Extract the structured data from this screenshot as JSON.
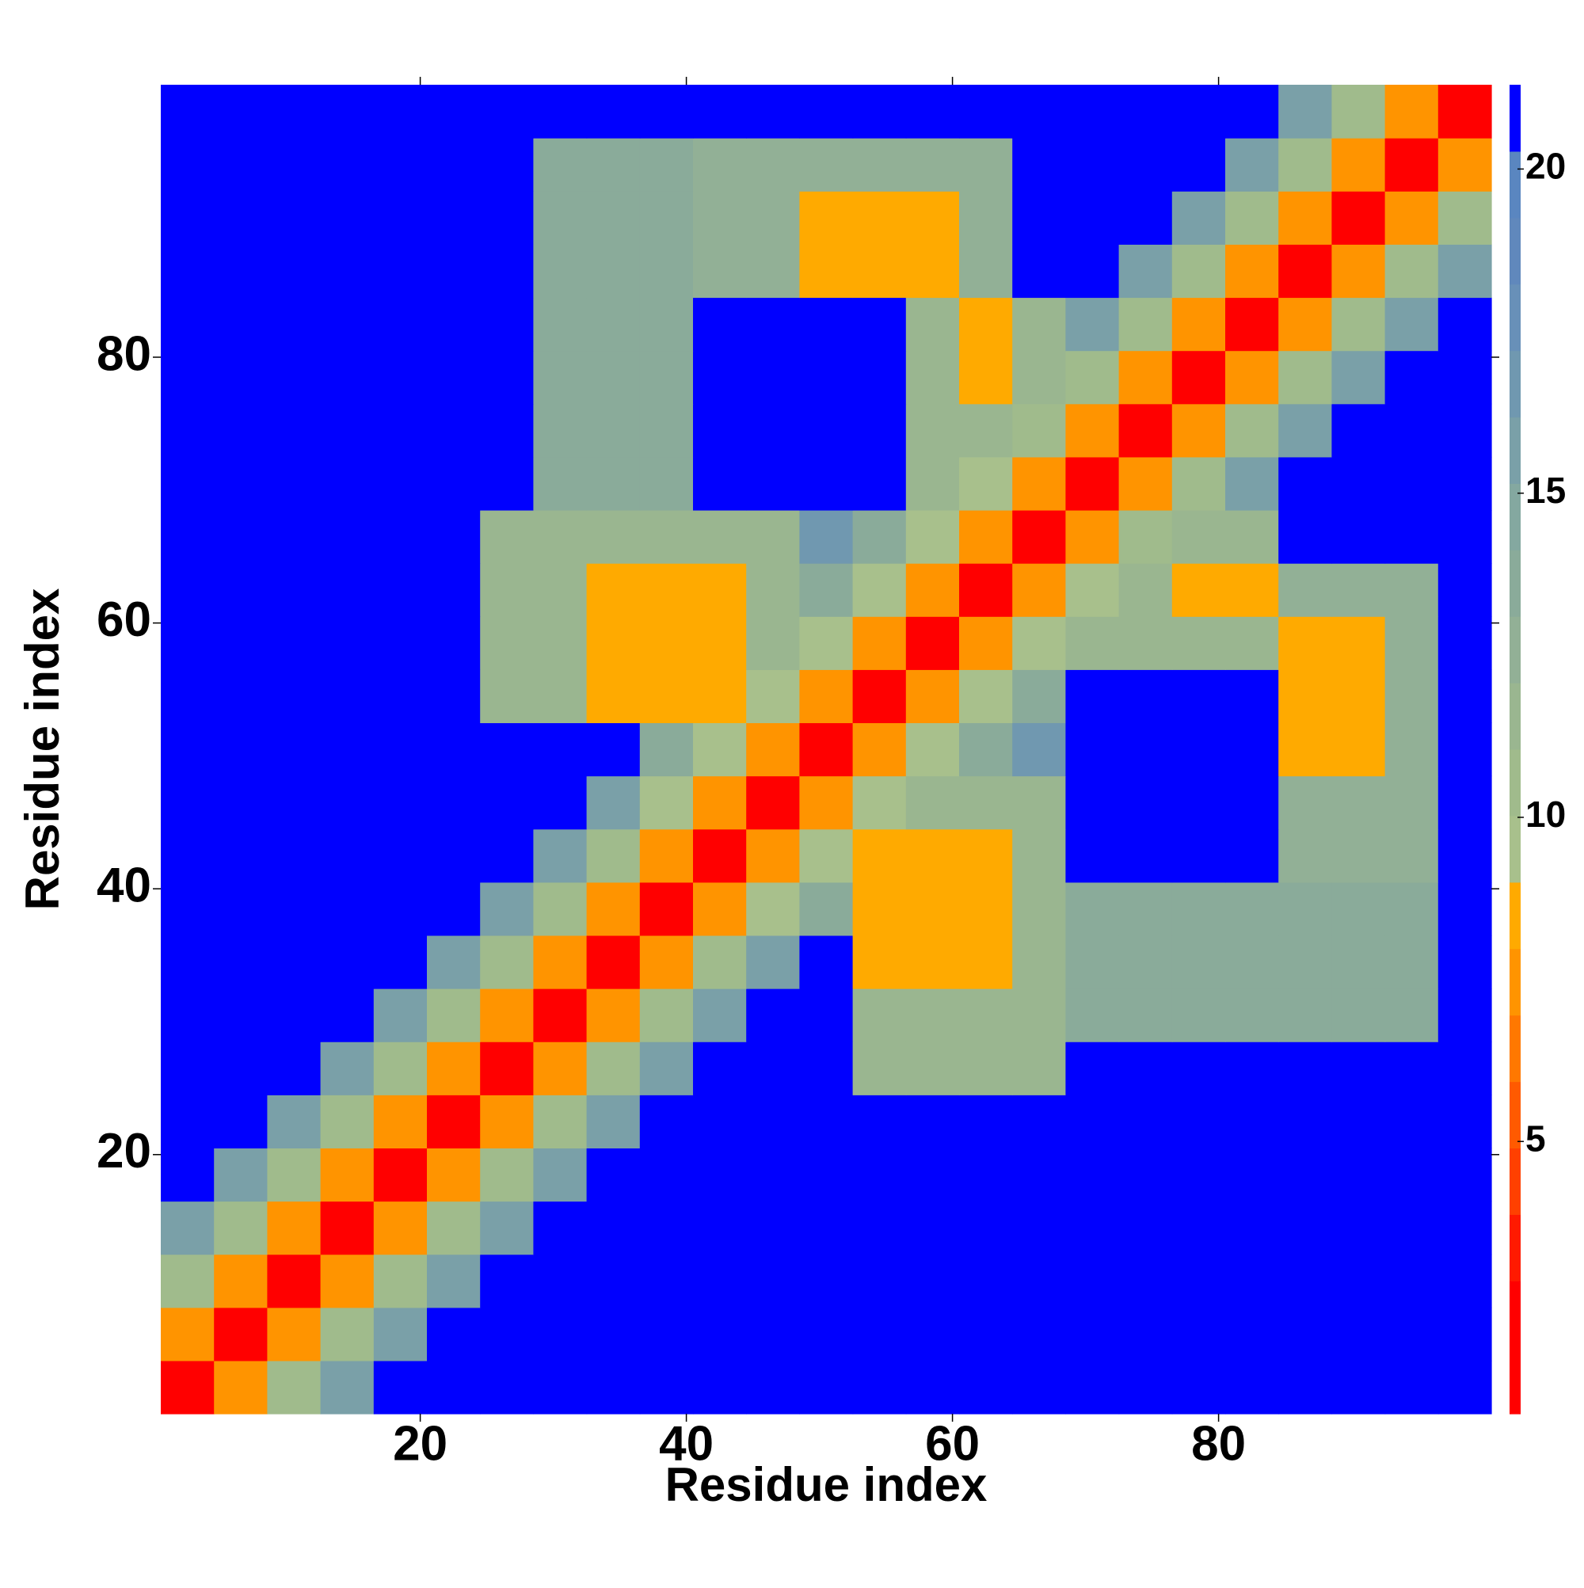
{
  "chart_data": {
    "type": "heatmap",
    "x_label": "Residue index",
    "y_label": "Residue index",
    "x": [
      2.5,
      6.5,
      10.5,
      14.5,
      18.5,
      22.5,
      26.5,
      30.5,
      34.5,
      38.5,
      42.5,
      46.5,
      50.5,
      54.5,
      58.5,
      62.5,
      66.5,
      70.5,
      74.5,
      78.5,
      82.5,
      86.5,
      90.5,
      94.5,
      98.5
    ],
    "y": [
      2.5,
      6.5,
      10.5,
      14.5,
      18.5,
      22.5,
      26.5,
      30.5,
      34.5,
      38.5,
      42.5,
      46.5,
      50.5,
      54.5,
      58.5,
      62.5,
      66.5,
      70.5,
      74.5,
      78.5,
      82.5,
      86.5,
      90.5,
      94.5,
      98.5
    ],
    "xlim": [
      0.5,
      100.5
    ],
    "ylim": [
      0.5,
      100.5
    ],
    "xticks": [
      20,
      40,
      60,
      80
    ],
    "yticks": [
      20,
      40,
      60,
      80
    ],
    "zlim": [
      0.8,
      21.3
    ],
    "zticks": [
      5,
      10,
      15,
      20
    ],
    "colors": [
      "#ff0000",
      "#ff0000",
      "#ff1a00",
      "#ff4000",
      "#ff5a00",
      "#ff7800",
      "#ff9400",
      "#ffaa00",
      "#a8c08c",
      "#a0bb8c",
      "#9ab690",
      "#92b096",
      "#8aab9a",
      "#84a8a0",
      "#7aa0a8",
      "#7098b0",
      "#6890b8",
      "#6088bc",
      "#5a86c0",
      "#0000ff"
    ],
    "values": [
      [
        2,
        7,
        11,
        16,
        21,
        21,
        21,
        21,
        21,
        21,
        21,
        21,
        21,
        21,
        21,
        21,
        21,
        21,
        21,
        21,
        21,
        21,
        21,
        21,
        21
      ],
      [
        7,
        2,
        7,
        11,
        16,
        21,
        21,
        21,
        21,
        21,
        21,
        21,
        21,
        21,
        21,
        21,
        21,
        21,
        21,
        21,
        21,
        21,
        21,
        21,
        21
      ],
      [
        11,
        7,
        2,
        7,
        11,
        16,
        21,
        21,
        21,
        21,
        21,
        21,
        21,
        21,
        21,
        21,
        21,
        21,
        21,
        21,
        21,
        21,
        21,
        21,
        21
      ],
      [
        16,
        11,
        7,
        2,
        7,
        11,
        16,
        21,
        21,
        21,
        21,
        21,
        21,
        21,
        21,
        21,
        21,
        21,
        21,
        21,
        21,
        21,
        21,
        21,
        21
      ],
      [
        21,
        16,
        11,
        7,
        2,
        7,
        11,
        16,
        21,
        21,
        21,
        21,
        21,
        21,
        21,
        21,
        21,
        21,
        21,
        21,
        21,
        21,
        21,
        21,
        21
      ],
      [
        21,
        21,
        16,
        11,
        7,
        2,
        7,
        11,
        16,
        21,
        21,
        21,
        21,
        21,
        21,
        21,
        21,
        21,
        21,
        21,
        21,
        21,
        21,
        21,
        21
      ],
      [
        21,
        21,
        21,
        16,
        11,
        7,
        2,
        7,
        11,
        16,
        21,
        21,
        21,
        12,
        12,
        12,
        12,
        21,
        21,
        21,
        21,
        21,
        21,
        21,
        21
      ],
      [
        21,
        21,
        21,
        21,
        16,
        11,
        7,
        2,
        7,
        11,
        16,
        21,
        21,
        12,
        12,
        12,
        12,
        14,
        14,
        14,
        14,
        14,
        14,
        14,
        21
      ],
      [
        21,
        21,
        21,
        21,
        21,
        16,
        11,
        7,
        2,
        7,
        11,
        16,
        21,
        8,
        8,
        8,
        12,
        14,
        14,
        14,
        14,
        14,
        14,
        14,
        21
      ],
      [
        21,
        21,
        21,
        21,
        21,
        21,
        16,
        11,
        7,
        2,
        7,
        10,
        14,
        8,
        8,
        8,
        12,
        14,
        14,
        14,
        14,
        14,
        14,
        14,
        21
      ],
      [
        21,
        21,
        21,
        21,
        21,
        21,
        21,
        16,
        11,
        7,
        2,
        7,
        10,
        8,
        8,
        8,
        12,
        21,
        21,
        21,
        21,
        13,
        13,
        13,
        21
      ],
      [
        21,
        21,
        21,
        21,
        21,
        21,
        21,
        21,
        16,
        10,
        7,
        2,
        7,
        10,
        12,
        12,
        12,
        21,
        21,
        21,
        21,
        13,
        13,
        13,
        21
      ],
      [
        21,
        21,
        21,
        21,
        21,
        21,
        21,
        21,
        21,
        14,
        10,
        7,
        2,
        7,
        10,
        14,
        17,
        21,
        21,
        21,
        21,
        8,
        8,
        13,
        21
      ],
      [
        21,
        21,
        21,
        21,
        21,
        21,
        12,
        12,
        8,
        8,
        8,
        10,
        7,
        2,
        7,
        10,
        14,
        21,
        21,
        21,
        21,
        8,
        8,
        13,
        21
      ],
      [
        21,
        21,
        21,
        21,
        21,
        21,
        12,
        12,
        8,
        8,
        8,
        12,
        10,
        7,
        2,
        7,
        10,
        12,
        12,
        12,
        12,
        8,
        8,
        13,
        21
      ],
      [
        21,
        21,
        21,
        21,
        21,
        21,
        12,
        12,
        8,
        8,
        8,
        12,
        14,
        10,
        7,
        2,
        7,
        10,
        12,
        8,
        8,
        13,
        13,
        13,
        21
      ],
      [
        21,
        21,
        21,
        21,
        21,
        21,
        12,
        12,
        12,
        12,
        12,
        12,
        17,
        14,
        10,
        7,
        2,
        7,
        11,
        12,
        12,
        21,
        21,
        21,
        21
      ],
      [
        21,
        21,
        21,
        21,
        21,
        21,
        21,
        14,
        14,
        14,
        21,
        21,
        21,
        21,
        12,
        10,
        7,
        2,
        7,
        11,
        16,
        21,
        21,
        21,
        21
      ],
      [
        21,
        21,
        21,
        21,
        21,
        21,
        21,
        14,
        14,
        14,
        21,
        21,
        21,
        21,
        12,
        12,
        11,
        7,
        2,
        7,
        11,
        16,
        21,
        21,
        21
      ],
      [
        21,
        21,
        21,
        21,
        21,
        21,
        21,
        14,
        14,
        14,
        21,
        21,
        21,
        21,
        12,
        8,
        12,
        11,
        7,
        2,
        7,
        11,
        16,
        21,
        21
      ],
      [
        21,
        21,
        21,
        21,
        21,
        21,
        21,
        14,
        14,
        14,
        21,
        21,
        21,
        21,
        12,
        8,
        12,
        16,
        11,
        7,
        2,
        7,
        11,
        16,
        21
      ],
      [
        21,
        21,
        21,
        21,
        21,
        21,
        21,
        14,
        14,
        14,
        13,
        13,
        8,
        8,
        8,
        13,
        21,
        21,
        16,
        11,
        7,
        2,
        7,
        11,
        16
      ],
      [
        21,
        21,
        21,
        21,
        21,
        21,
        21,
        14,
        14,
        14,
        13,
        13,
        8,
        8,
        8,
        13,
        21,
        21,
        21,
        16,
        11,
        7,
        2,
        7,
        11
      ],
      [
        21,
        21,
        21,
        21,
        21,
        21,
        21,
        14,
        14,
        14,
        13,
        13,
        13,
        13,
        13,
        13,
        21,
        21,
        21,
        21,
        16,
        11,
        7,
        2,
        7
      ],
      [
        21,
        21,
        21,
        21,
        21,
        21,
        21,
        21,
        21,
        21,
        21,
        21,
        21,
        21,
        21,
        21,
        21,
        21,
        21,
        21,
        21,
        16,
        11,
        7,
        2
      ]
    ]
  }
}
